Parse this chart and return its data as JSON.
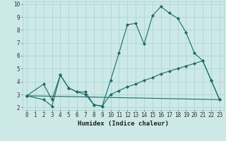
{
  "xlabel": "Humidex (Indice chaleur)",
  "xlim": [
    -0.5,
    23.5
  ],
  "ylim": [
    1.8,
    10.2
  ],
  "xticks": [
    0,
    1,
    2,
    3,
    4,
    5,
    6,
    7,
    8,
    9,
    10,
    11,
    12,
    13,
    14,
    15,
    16,
    17,
    18,
    19,
    20,
    21,
    22,
    23
  ],
  "yticks": [
    2,
    3,
    4,
    5,
    6,
    7,
    8,
    9,
    10
  ],
  "bg_color": "#cce9e7",
  "grid_color": "#aed4d2",
  "line_color": "#1a6b6a",
  "series1_x": [
    0,
    2,
    3,
    4,
    5,
    6,
    7,
    8,
    9,
    10,
    11,
    12,
    13,
    14,
    15,
    16,
    17,
    18,
    19,
    20,
    21,
    22,
    23
  ],
  "series1_y": [
    2.9,
    3.8,
    2.6,
    4.5,
    3.5,
    3.2,
    3.2,
    2.2,
    2.1,
    4.1,
    6.2,
    8.4,
    8.5,
    6.9,
    9.1,
    9.8,
    9.3,
    8.9,
    7.8,
    6.2,
    5.6,
    4.1,
    2.6
  ],
  "series2_x": [
    0,
    2,
    3,
    4,
    5,
    6,
    7,
    8,
    9,
    10,
    11,
    12,
    13,
    14,
    15,
    16,
    17,
    18,
    19,
    20,
    21,
    22,
    23
  ],
  "series2_y": [
    2.9,
    2.6,
    2.1,
    4.5,
    3.5,
    3.2,
    3.0,
    2.2,
    2.1,
    3.0,
    3.3,
    3.6,
    3.8,
    4.1,
    4.3,
    4.6,
    4.8,
    5.0,
    5.2,
    5.4,
    5.6,
    4.1,
    2.6
  ],
  "series3_x": [
    0,
    23
  ],
  "series3_y": [
    2.9,
    2.6
  ]
}
